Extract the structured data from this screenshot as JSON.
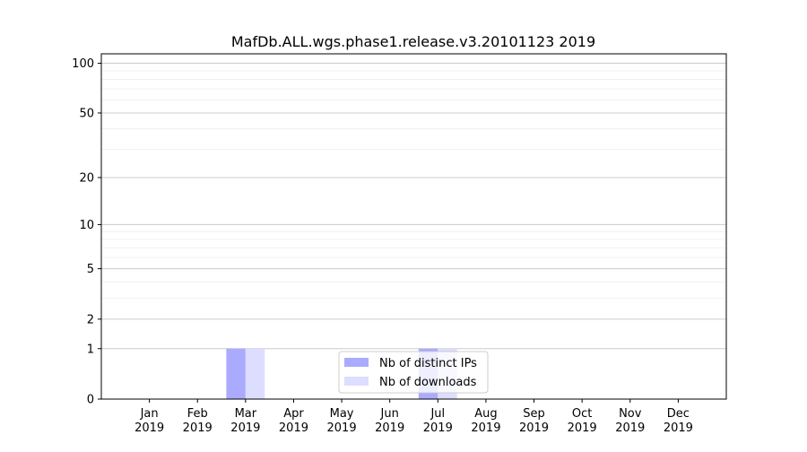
{
  "chart_data": {
    "type": "bar",
    "title": "MafDb.ALL.wgs.phase1.release.v3.20101123 2019",
    "xlabel": "",
    "ylabel": "",
    "categories": [
      "Jan\n2019",
      "Feb\n2019",
      "Mar\n2019",
      "Apr\n2019",
      "May\n2019",
      "Jun\n2019",
      "Jul\n2019",
      "Aug\n2019",
      "Sep\n2019",
      "Oct\n2019",
      "Nov\n2019",
      "Dec\n2019"
    ],
    "category_lines": [
      [
        "Jan",
        "2019"
      ],
      [
        "Feb",
        "2019"
      ],
      [
        "Mar",
        "2019"
      ],
      [
        "Apr",
        "2019"
      ],
      [
        "May",
        "2019"
      ],
      [
        "Jun",
        "2019"
      ],
      [
        "Jul",
        "2019"
      ],
      [
        "Aug",
        "2019"
      ],
      [
        "Sep",
        "2019"
      ],
      [
        "Oct",
        "2019"
      ],
      [
        "Nov",
        "2019"
      ],
      [
        "Dec",
        "2019"
      ]
    ],
    "series": [
      {
        "name": "Nb of distinct IPs",
        "color": "#aaaaff",
        "values": [
          0,
          0,
          1,
          0,
          0,
          0,
          1,
          0,
          0,
          0,
          0,
          0
        ]
      },
      {
        "name": "Nb of downloads",
        "color": "#ddddff",
        "values": [
          0,
          0,
          1,
          0,
          0,
          0,
          1,
          0,
          0,
          0,
          0,
          0
        ]
      }
    ],
    "yscale": "log(1+y)",
    "yticks": [
      0,
      1,
      2,
      5,
      10,
      20,
      50,
      100
    ],
    "ylim": [
      0,
      114
    ],
    "grid": true,
    "legend_position": "lower center"
  }
}
